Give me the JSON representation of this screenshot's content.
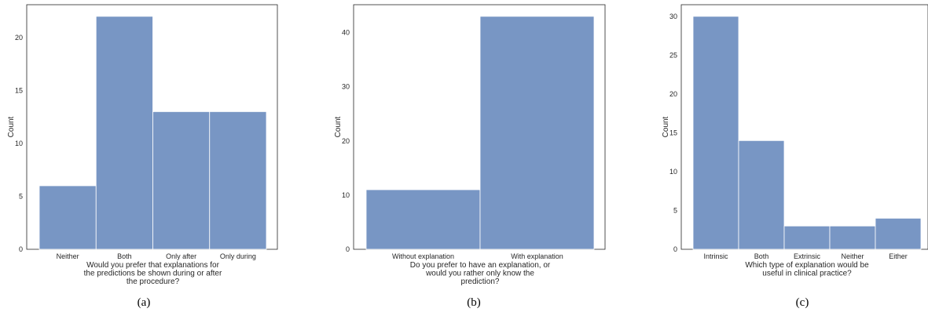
{
  "chart_data": [
    {
      "type": "bar",
      "categories": [
        "Neither",
        "Both",
        "Only after",
        "Only during"
      ],
      "values": [
        6,
        22,
        13,
        13
      ],
      "ylabel": "Count",
      "xlabel_lines": [
        "Would you prefer that explanations for",
        "the predictions be shown during or after",
        "the procedure?"
      ],
      "ylim": [
        0,
        23.1
      ],
      "yticks": [
        0,
        5,
        10,
        15,
        20
      ],
      "caption": "(a)",
      "bar_color": "#7896c4"
    },
    {
      "type": "bar",
      "categories": [
        "Without explanation",
        "With explanation"
      ],
      "values": [
        11,
        43
      ],
      "ylabel": "Count",
      "xlabel_lines": [
        "Do you prefer to have an explanation, or",
        "would you rather only know the",
        "prediction?"
      ],
      "ylim": [
        0,
        45.15
      ],
      "yticks": [
        0,
        10,
        20,
        30,
        40
      ],
      "caption": "(b)",
      "bar_color": "#7896c4"
    },
    {
      "type": "bar",
      "categories": [
        "Intrinsic",
        "Both",
        "Extrinsic",
        "Neither",
        "Either"
      ],
      "values": [
        30,
        14,
        3,
        3,
        4
      ],
      "ylabel": "Count",
      "xlabel_lines": [
        "Which type of explanation would be",
        "useful in clinical practice?"
      ],
      "ylim": [
        0,
        31.5
      ],
      "yticks": [
        0,
        5,
        10,
        15,
        20,
        25,
        30
      ],
      "caption": "(c)",
      "bar_color": "#7896c4"
    }
  ]
}
